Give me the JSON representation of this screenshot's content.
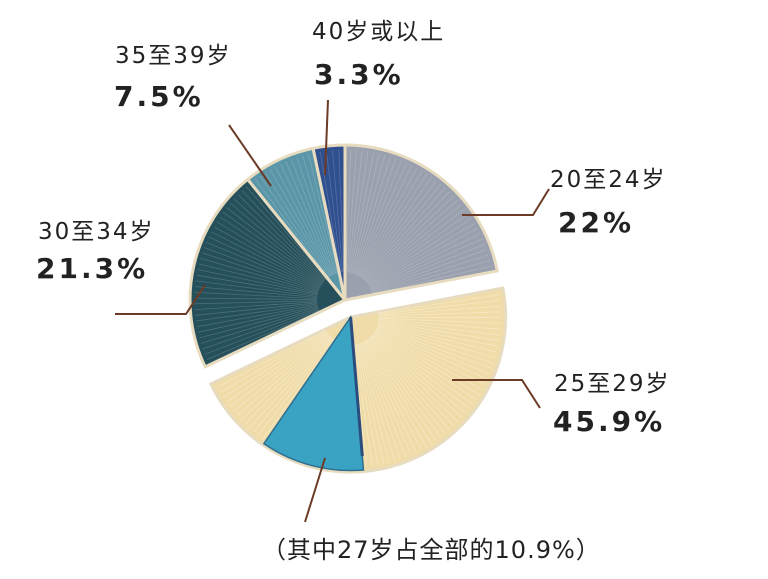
{
  "chart_data": {
    "type": "pie",
    "categories": [
      "20至24岁",
      "25至29岁",
      "30至34岁",
      "35至39岁",
      "40岁或以上"
    ],
    "values": [
      22,
      45.9,
      21.3,
      7.5,
      3.3
    ],
    "value_labels": [
      "22%",
      "45.9%",
      "21.3%",
      "7.5%",
      "3.3%"
    ],
    "sub_slice": {
      "parent": "25至29岁",
      "value": 10.9,
      "annotation": "（其中27岁占全部的10.9%）"
    },
    "exploded": [
      "25至29岁"
    ],
    "legend": "none",
    "colors": [
      "#9aa0ae",
      "#f0dca8",
      "#254f5a",
      "#5b96a8",
      "#2f4f8f"
    ],
    "sub_slice_color": "#3aa2c2"
  }
}
